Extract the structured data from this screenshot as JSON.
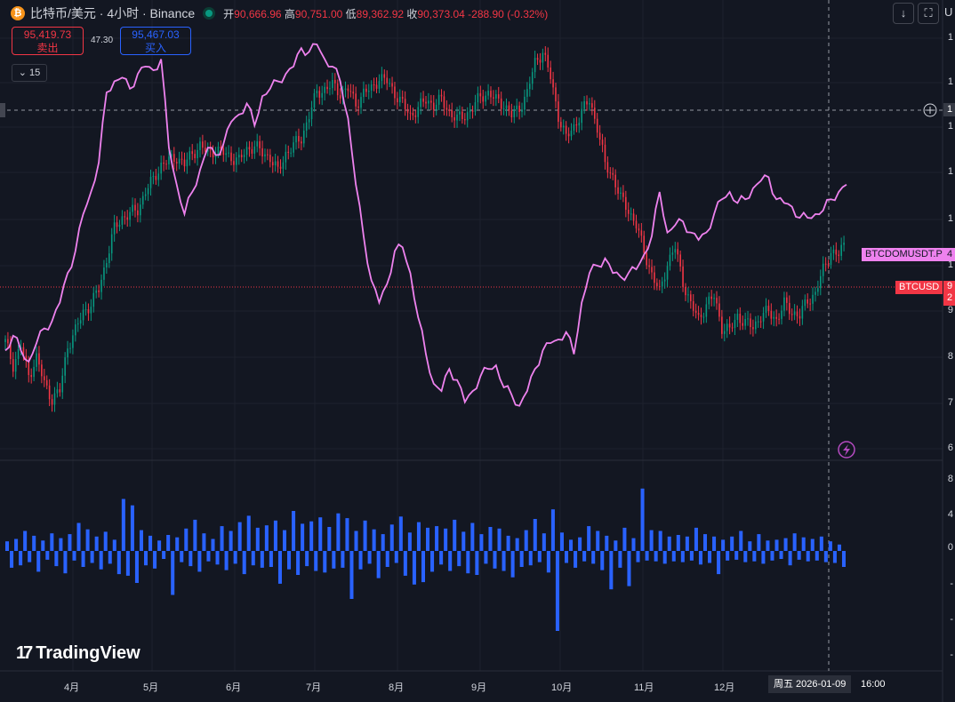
{
  "header": {
    "coin_glyph": "₿",
    "symbol": "比特币/美元 · 4小时 · Binance",
    "open_label": "开",
    "open": "90,666.96",
    "high_label": "高",
    "high": "90,751.00",
    "low_label": "低",
    "low": "89,362.92",
    "close_label": "收",
    "close": "90,373.04",
    "change": "-288.90 (-0.32%)"
  },
  "trade": {
    "sell_price": "95,419.73",
    "sell_label": "卖出",
    "spread": "47.30",
    "buy_price": "95,467.03",
    "buy_label": "买入"
  },
  "indicator_toggle": "15",
  "toolbar": {
    "download_icon": "↓",
    "fullscreen_icon": "⛶",
    "partial_letter": "U"
  },
  "tags": {
    "btcdom": "BTCDOMUSDT.P",
    "btcdom_value": "4",
    "btcusd": "BTCUSD",
    "btcusd_value_1": "9",
    "btcusd_value_2": "2"
  },
  "crosshair_label": "1",
  "axis": {
    "price_ticks": [
      "1",
      "1",
      "1",
      "1",
      "1",
      "1",
      "9",
      "8",
      "7",
      "6"
    ],
    "volume_ticks": [
      "8",
      "4",
      "0",
      "-",
      "-",
      "-"
    ],
    "months": [
      "4月",
      "5月",
      "6月",
      "7月",
      "8月",
      "9月",
      "10月",
      "11月",
      "12月"
    ]
  },
  "cursor_date": "周五 2026-01-09",
  "cursor_time": "16:00",
  "brand": "TradingView",
  "colors": {
    "up": "#089981",
    "down": "#f23645",
    "overlay": "#ee82ee",
    "volume": "#2962ff",
    "bg": "#131722"
  },
  "chart_data": [
    {
      "type": "line",
      "title": "",
      "series": [
        {
          "name": "BTCUSD",
          "values": [
            0.2,
            0.14,
            0.19,
            0.11,
            0.16,
            0.09,
            0.05,
            0.07,
            0.19,
            0.23,
            0.28,
            0.3,
            0.34,
            0.42,
            0.5,
            0.53,
            0.54,
            0.55,
            0.6,
            0.63,
            0.67,
            0.68,
            0.69,
            0.67,
            0.7,
            0.72,
            0.7,
            0.71,
            0.7,
            0.69,
            0.68,
            0.71,
            0.72,
            0.7,
            0.69,
            0.65,
            0.7,
            0.72,
            0.74,
            0.8,
            0.86,
            0.87,
            0.88,
            0.86,
            0.87,
            0.83,
            0.86,
            0.87,
            0.9,
            0.89,
            0.86,
            0.83,
            0.8,
            0.82,
            0.84,
            0.83,
            0.84,
            0.81,
            0.79,
            0.8,
            0.82,
            0.85,
            0.86,
            0.84,
            0.83,
            0.8,
            0.82,
            0.86,
            0.94,
            0.97,
            0.9,
            0.8,
            0.74,
            0.77,
            0.81,
            0.84,
            0.77,
            0.67,
            0.64,
            0.58,
            0.55,
            0.51,
            0.44,
            0.38,
            0.33,
            0.41,
            0.45,
            0.36,
            0.3,
            0.26,
            0.3,
            0.32,
            0.24,
            0.23,
            0.27,
            0.25,
            0.24,
            0.27,
            0.28,
            0.26,
            0.3,
            0.28,
            0.27,
            0.31,
            0.33,
            0.39,
            0.44,
            0.43,
            0.47
          ]
        },
        {
          "name": "BTCDOMUSDT.P",
          "values": [
            0.17,
            0.21,
            0.17,
            0.14,
            0.19,
            0.23,
            0.25,
            0.3,
            0.38,
            0.44,
            0.54,
            0.6,
            0.68,
            0.87,
            0.9,
            0.91,
            0.88,
            0.92,
            0.94,
            0.93,
            0.96,
            0.72,
            0.62,
            0.54,
            0.6,
            0.66,
            0.72,
            0.7,
            0.73,
            0.79,
            0.81,
            0.84,
            0.78,
            0.86,
            0.88,
            0.9,
            0.92,
            0.94,
            0.99,
            0.98,
            1.0,
            0.96,
            0.94,
            0.9,
            0.8,
            0.62,
            0.48,
            0.36,
            0.3,
            0.35,
            0.44,
            0.45,
            0.38,
            0.26,
            0.16,
            0.08,
            0.06,
            0.12,
            0.09,
            0.03,
            0.06,
            0.1,
            0.12,
            0.13,
            0.07,
            0.05,
            0.02,
            0.06,
            0.12,
            0.17,
            0.19,
            0.2,
            0.22,
            0.16,
            0.3,
            0.38,
            0.4,
            0.42,
            0.38,
            0.37,
            0.38,
            0.39,
            0.43,
            0.48,
            0.6,
            0.49,
            0.51,
            0.52,
            0.49,
            0.47,
            0.49,
            0.54,
            0.58,
            0.6,
            0.57,
            0.58,
            0.61,
            0.63,
            0.64,
            0.58,
            0.57,
            0.56,
            0.53,
            0.53,
            0.54,
            0.55,
            0.58,
            0.6,
            0.62
          ]
        }
      ]
    },
    {
      "type": "bar",
      "title": "",
      "values": [
        1.2,
        -2.1,
        1.5,
        -1.8,
        2.5,
        -1.4,
        1.9,
        -2.6,
        1.3,
        -1.1,
        2.2,
        -1.9,
        1.6,
        -2.8,
        2.1,
        -1.2,
        3.5,
        -2.0,
        2.7,
        -1.5,
        1.8,
        -2.3,
        2.4,
        -1.6,
        1.4,
        -2.9,
        6.5,
        -3.1,
        5.7,
        -4.0,
        2.6,
        -1.8,
        1.9,
        -2.2,
        1.3,
        -1.0,
        2.0,
        -5.5,
        1.7,
        -1.4,
        2.8,
        -1.9,
        3.9,
        -2.6,
        2.2,
        -1.3,
        1.5,
        -1.7,
        3.1,
        -2.4,
        2.5,
        -1.6,
        3.6,
        -2.9,
        4.4,
        -1.8,
        2.9,
        -2.1,
        3.2,
        -2.0,
        3.8,
        -4.1,
        2.6,
        -2.3,
        5.0,
        -3.0,
        3.4,
        -1.9,
        3.7,
        -2.5,
        4.2,
        -2.7,
        3.0,
        -2.2,
        4.7,
        -2.1,
        4.1,
        -6.0,
        2.5,
        -2.3,
        3.8,
        -1.6,
        2.7,
        -3.4,
        2.1,
        -2.0,
        3.3,
        -1.5,
        4.3,
        -3.1,
        2.3,
        -4.2,
        3.6,
        -3.9,
        2.9,
        -2.6,
        3.1,
        -1.7,
        2.8,
        -2.5,
        3.9,
        -1.9,
        2.4,
        -2.8,
        3.5,
        -3.0,
        2.1,
        -1.6,
        3.0,
        -2.2,
        2.8,
        -2.5,
        1.9,
        -3.3,
        1.6,
        -2.0,
        2.6,
        -1.8,
        4.0,
        -1.4,
        2.2,
        -2.7,
        5.2,
        -10.0,
        2.3,
        -1.5,
        1.4,
        -2.1,
        1.7,
        -1.3,
        3.1,
        -1.6,
        2.5,
        -2.4,
        1.9,
        -4.8,
        1.3,
        -2.1,
        2.9,
        -4.4,
        1.6,
        -1.4,
        7.8,
        -1.2,
        2.6,
        -1.3,
        2.5,
        -1.6,
        1.8,
        -1.3,
        2.0,
        -1.4,
        1.8,
        -1.2,
        2.9,
        -1.7,
        2.1,
        -1.5,
        1.8,
        -2.9,
        1.4,
        -1.2,
        1.8,
        -1.1,
        2.5,
        -1.4,
        1.2,
        -1.3,
        2.1,
        -1.6,
        1.3,
        -1.2,
        1.4,
        -1.0,
        1.6,
        -1.8,
        2.2,
        -1.1,
        1.7,
        -1.3,
        1.5,
        -1.2,
        1.8,
        -1.4,
        1.2,
        -1.5,
        0.8,
        -2.0
      ]
    }
  ]
}
